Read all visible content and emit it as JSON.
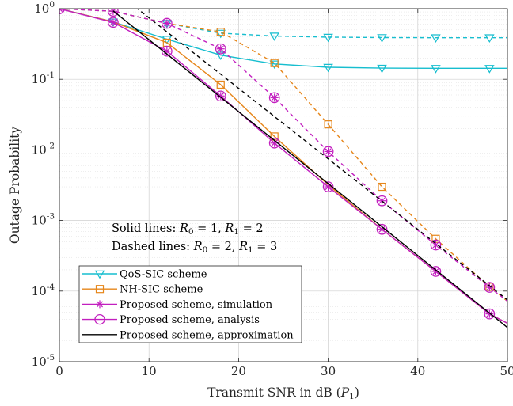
{
  "chart_data": {
    "type": "line",
    "xlabel": "Transmit SNR in dB (",
    "xlabel_var": "P",
    "xlabel_sub": "1",
    "xlabel_end": ")",
    "ylabel": "Outage Probability",
    "xlim": [
      0,
      50
    ],
    "ylim": [
      1e-05,
      1
    ],
    "yscale": "log",
    "grid": true,
    "x_ticks": [
      0,
      10,
      20,
      30,
      40,
      50
    ],
    "y_ticks": [
      {
        "value": 1e-05,
        "base": "10",
        "exp": "-5"
      },
      {
        "value": 0.0001,
        "base": "10",
        "exp": "-4"
      },
      {
        "value": 0.001,
        "base": "10",
        "exp": "-3"
      },
      {
        "value": 0.01,
        "base": "10",
        "exp": "-2"
      },
      {
        "value": 0.1,
        "base": "10",
        "exp": "-1"
      },
      {
        "value": 1,
        "base": "10",
        "exp": "0"
      }
    ],
    "annotations": {
      "solid_prefix": "Solid lines: ",
      "solid_R0": "R",
      "solid_R0_sub": "0",
      "solid_R0_val": " = 1, ",
      "solid_R1": "R",
      "solid_R1_sub": "1",
      "solid_R1_val": " = 2",
      "dashed_prefix": "Dashed lines: ",
      "dashed_R0": "R",
      "dashed_R0_sub": "0",
      "dashed_R0_val": " = 2, ",
      "dashed_R1": "R",
      "dashed_R1_sub": "1",
      "dashed_R1_val": " = 3"
    },
    "legend": {
      "placement": "bottom-left",
      "entries": [
        {
          "label": "QoS-SIC scheme",
          "color": "#17becf",
          "marker": "triangle-down"
        },
        {
          "label": "NH-SIC scheme",
          "color": "#e6861a",
          "marker": "square"
        },
        {
          "label": "Proposed scheme, simulation",
          "color": "#c21fbf",
          "marker": "star"
        },
        {
          "label": "Proposed scheme, analysis",
          "color": "#c21fbf",
          "marker": "circle"
        },
        {
          "label": "Proposed scheme, approximation",
          "color": "#000000",
          "marker": "none"
        }
      ]
    },
    "series": [
      {
        "name": "QoS-SIC scheme",
        "style": "solid",
        "color": "#17becf",
        "marker": "triangle-down",
        "x": [
          0,
          6,
          12,
          18,
          24,
          30,
          36,
          42,
          48,
          50
        ],
        "y": [
          1.0,
          0.65,
          0.37,
          0.22,
          0.165,
          0.148,
          0.144,
          0.143,
          0.143,
          0.143
        ],
        "markers_x": [
          6,
          12,
          18,
          24,
          30,
          36,
          42,
          48
        ]
      },
      {
        "name": "QoS-SIC scheme",
        "style": "dashed",
        "color": "#17becf",
        "marker": "triangle-down",
        "x": [
          0,
          6,
          12,
          18,
          24,
          30,
          36,
          42,
          48,
          50
        ],
        "y": [
          1.0,
          0.92,
          0.62,
          0.45,
          0.41,
          0.395,
          0.39,
          0.388,
          0.388,
          0.388
        ],
        "markers_x": [
          12,
          18,
          24,
          30,
          36,
          42,
          48
        ]
      },
      {
        "name": "NH-SIC scheme",
        "style": "solid",
        "color": "#e6861a",
        "marker": "square",
        "x": [
          0,
          6,
          12,
          18,
          24,
          30,
          36,
          42,
          48,
          50
        ],
        "y": [
          1.0,
          0.65,
          0.33,
          0.084,
          0.0155,
          0.0032,
          0.00075,
          0.00019,
          4.75e-05,
          3.5e-05
        ],
        "markers_x": [
          12,
          18,
          24
        ]
      },
      {
        "name": "NH-SIC scheme",
        "style": "dashed",
        "color": "#e6861a",
        "marker": "square",
        "x": [
          0,
          6,
          12,
          18,
          24,
          30,
          36,
          42,
          48,
          50
        ],
        "y": [
          1.0,
          0.92,
          0.62,
          0.47,
          0.17,
          0.023,
          0.003,
          0.00055,
          0.000115,
          7.2e-05
        ],
        "markers_x": [
          18,
          24,
          30,
          36,
          42,
          48
        ]
      },
      {
        "name": "Proposed scheme, simulation",
        "style": "solid",
        "color": "#c21fbf",
        "marker": "star",
        "x": [
          0,
          6,
          12,
          18,
          24,
          30,
          36,
          42,
          48,
          50
        ],
        "y": [
          1.0,
          0.64,
          0.25,
          0.058,
          0.0125,
          0.003,
          0.00075,
          0.00019,
          4.75e-05,
          3.5e-05
        ],
        "markers_x": [
          0,
          6,
          12,
          18,
          24,
          30,
          36,
          42,
          48
        ]
      },
      {
        "name": "Proposed scheme, analysis",
        "style": "dashed",
        "color": "#c21fbf",
        "marker": "star",
        "x": [
          0,
          6,
          12,
          18,
          24,
          30,
          36,
          42,
          48,
          50
        ],
        "y": [
          1.0,
          0.92,
          0.62,
          0.27,
          0.055,
          0.0095,
          0.0019,
          0.00045,
          0.000113,
          7.2e-05
        ],
        "markers_x": [
          0,
          6,
          12,
          18,
          24,
          30,
          36,
          42,
          48
        ]
      },
      {
        "name": "Proposed scheme, approximation",
        "style": "solid",
        "color": "#000000",
        "marker": "none",
        "x": [
          6,
          50
        ],
        "y": [
          0.93,
          3.05e-05
        ],
        "markers_x": []
      },
      {
        "name": "Proposed scheme, approximation",
        "style": "dashed",
        "color": "#000000",
        "marker": "none",
        "x": [
          8.5,
          50
        ],
        "y": [
          1.05,
          7.5e-05
        ],
        "markers_x": []
      }
    ]
  }
}
